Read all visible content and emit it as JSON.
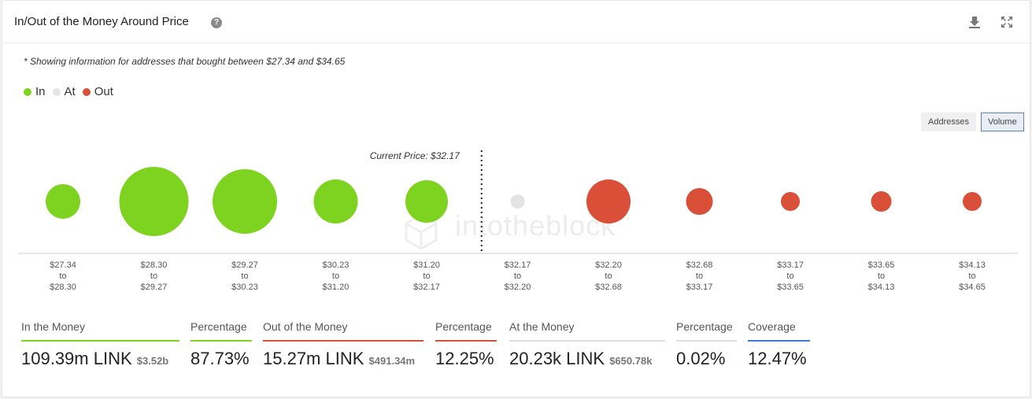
{
  "header": {
    "title": "In/Out of the Money Around Price",
    "help_icon": "?"
  },
  "note": "* Showing information for addresses that bought between $27.34 and $34.65",
  "legend": [
    {
      "label": "In",
      "color": "#7ed321"
    },
    {
      "label": "At",
      "color": "#e3e3e3"
    },
    {
      "label": "Out",
      "color": "#d94f38"
    }
  ],
  "toggles": {
    "addresses": "Addresses",
    "volume": "Volume"
  },
  "watermark": "intotheblock",
  "chart_data": {
    "type": "bubble",
    "current_price_label": "Current Price: $32.17",
    "current_price_index": 5,
    "categories": [
      {
        "from": "$27.34",
        "to_word": "to",
        "to": "$28.30",
        "status": "in",
        "size": 22
      },
      {
        "from": "$28.30",
        "to_word": "to",
        "to": "$29.27",
        "status": "in",
        "size": 44
      },
      {
        "from": "$29.27",
        "to_word": "to",
        "to": "$30.23",
        "status": "in",
        "size": 41
      },
      {
        "from": "$30.23",
        "to_word": "to",
        "to": "$31.20",
        "status": "in",
        "size": 28
      },
      {
        "from": "$31.20",
        "to_word": "to",
        "to": "$32.17",
        "status": "in",
        "size": 27
      },
      {
        "from": "$32.17",
        "to_word": "to",
        "to": "$32.20",
        "status": "at",
        "size": 9
      },
      {
        "from": "$32.20",
        "to_word": "to",
        "to": "$32.68",
        "status": "out",
        "size": 28
      },
      {
        "from": "$32.68",
        "to_word": "to",
        "to": "$33.17",
        "status": "out",
        "size": 17
      },
      {
        "from": "$33.17",
        "to_word": "to",
        "to": "$33.65",
        "status": "out",
        "size": 12
      },
      {
        "from": "$33.65",
        "to_word": "to",
        "to": "$34.13",
        "status": "out",
        "size": 13
      },
      {
        "from": "$34.13",
        "to_word": "to",
        "to": "$34.65",
        "status": "out",
        "size": 12
      }
    ],
    "colors": {
      "in": "#7ed321",
      "at": "#e3e3e3",
      "out": "#d94f38"
    }
  },
  "stats": {
    "in_money": {
      "label": "In the Money",
      "value": "109.39m LINK",
      "sub": "$3.52b",
      "color": "#7ed321"
    },
    "in_pct": {
      "label": "Percentage",
      "value": "87.73%",
      "color": "#7ed321"
    },
    "out_money": {
      "label": "Out of the Money",
      "value": "15.27m LINK",
      "sub": "$491.34m",
      "color": "#d94f38"
    },
    "out_pct": {
      "label": "Percentage",
      "value": "12.25%",
      "color": "#d94f38"
    },
    "at_money": {
      "label": "At the Money",
      "value": "20.23k LINK",
      "sub": "$650.78k",
      "color": "#dddddd"
    },
    "at_pct": {
      "label": "Percentage",
      "value": "0.02%",
      "color": "#dddddd"
    },
    "coverage": {
      "label": "Coverage",
      "value": "12.47%",
      "color": "#3a7bd5"
    }
  }
}
